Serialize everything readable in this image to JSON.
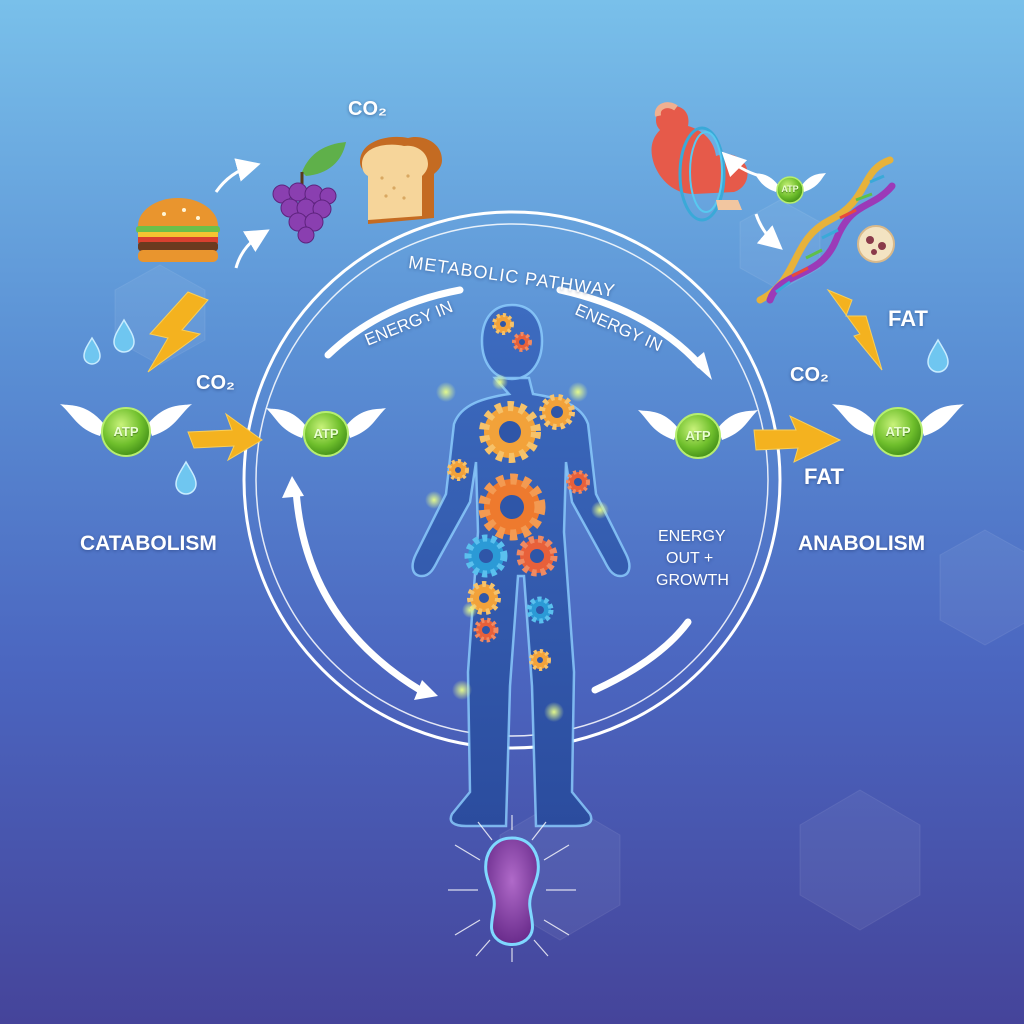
{
  "pathway": {
    "title": "METABOLIC PATHWAY",
    "energy_in_left": "ENERGY IN",
    "energy_in_right": "ENERGY IN"
  },
  "sides": {
    "left": "CATABOLISM",
    "right": "ANABOLISM"
  },
  "energy_out": {
    "line1": "ENERGY",
    "line2": "OUT +",
    "line3": "GROWTH"
  },
  "molecules": {
    "co2_top": "CO₂",
    "co2_left": "CO₂",
    "co2_right": "CO₂",
    "fat_top": "FAT",
    "fat_mid": "FAT"
  },
  "atp": {
    "label": "ATP"
  },
  "icons": [
    "burger-icon",
    "grapes-icon",
    "bread-icon",
    "muscle-icon",
    "dna-icon",
    "cell-icon",
    "lightning-icon",
    "water-drop-icon",
    "gear-icon"
  ],
  "colors": {
    "atp": "#7cc53a",
    "lightning": "#f4b21f",
    "gear_orange": "#f08c2a",
    "body": "#2f56a8",
    "ring": "#ffffff"
  }
}
